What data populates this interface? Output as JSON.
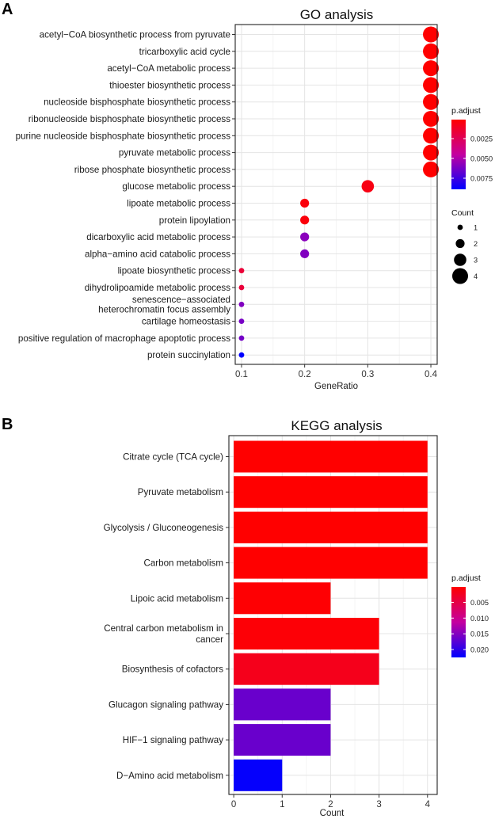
{
  "panels": {
    "a_letter": "A",
    "b_letter": "B"
  },
  "chart_data": [
    {
      "type": "scatter",
      "title": "GO analysis",
      "xlabel": "GeneRatio",
      "ylabel": "",
      "xlim": [
        0.09,
        0.41
      ],
      "xticks": [
        0.1,
        0.2,
        0.3,
        0.4
      ],
      "xtick_labels": [
        "0.1",
        "0.2",
        "0.3",
        "0.4"
      ],
      "grid": true,
      "categories": [
        "acetyl−CoA biosynthetic process from pyruvate",
        "tricarboxylic acid cycle",
        "acetyl−CoA metabolic process",
        "thioester biosynthetic process",
        "nucleoside bisphosphate biosynthetic process",
        "ribonucleoside bisphosphate biosynthetic process",
        "purine nucleoside bisphosphate biosynthetic process",
        "pyruvate metabolic process",
        "ribose phosphate biosynthetic process",
        "glucose metabolic process",
        "lipoate metabolic process",
        "protein lipoylation",
        "dicarboxylic acid metabolic process",
        "alpha−amino acid catabolic process",
        "lipoate biosynthetic process",
        "dihydrolipoamide metabolic process",
        "senescence−associated heterochromatin focus assembly",
        "cartilage homeostasis",
        "positive regulation of macrophage apoptotic process",
        "protein succinylation"
      ],
      "category_label_lines": [
        [
          "acetyl−CoA biosynthetic process from pyruvate"
        ],
        [
          "tricarboxylic acid cycle"
        ],
        [
          "acetyl−CoA metabolic process"
        ],
        [
          "thioester biosynthetic process"
        ],
        [
          "nucleoside bisphosphate biosynthetic process"
        ],
        [
          "ribonucleoside bisphosphate biosynthetic process"
        ],
        [
          "purine nucleoside bisphosphate biosynthetic process"
        ],
        [
          "pyruvate metabolic process"
        ],
        [
          "ribose phosphate biosynthetic process"
        ],
        [
          "glucose metabolic process"
        ],
        [
          "lipoate metabolic process"
        ],
        [
          "protein lipoylation"
        ],
        [
          "dicarboxylic acid metabolic process"
        ],
        [
          "alpha−amino acid catabolic process"
        ],
        [
          "lipoate biosynthetic process"
        ],
        [
          "dihydrolipoamide metabolic process"
        ],
        [
          "senescence−associated",
          "heterochromatin focus assembly"
        ],
        [
          "cartilage homeostasis"
        ],
        [
          "positive regulation of macrophage apoptotic process"
        ],
        [
          "protein succinylation"
        ]
      ],
      "gene_ratio": [
        0.4,
        0.4,
        0.4,
        0.4,
        0.4,
        0.4,
        0.4,
        0.4,
        0.4,
        0.3,
        0.2,
        0.2,
        0.2,
        0.2,
        0.1,
        0.1,
        0.1,
        0.1,
        0.1,
        0.1
      ],
      "count": [
        4,
        4,
        4,
        4,
        4,
        4,
        4,
        4,
        4,
        3,
        2,
        2,
        2,
        2,
        1,
        1,
        1,
        1,
        1,
        1
      ],
      "p_adjust": [
        0.0001,
        0.0001,
        0.0001,
        0.0001,
        0.0001,
        0.0001,
        0.0001,
        0.0001,
        0.0001,
        0.0006,
        0.0004,
        0.0004,
        0.0058,
        0.006,
        0.0016,
        0.0017,
        0.006,
        0.0062,
        0.0063,
        0.0089
      ],
      "color_legend": {
        "title": "p.adjust",
        "ticks": [
          0.0025,
          0.005,
          0.0075
        ],
        "tick_labels": [
          "0.0025",
          "0.0050",
          "0.0075"
        ],
        "range": [
          0.0001,
          0.0089
        ],
        "low_color": "#ff0000",
        "high_color": "#0000ff"
      },
      "size_legend": {
        "title": "Count",
        "values": [
          1,
          2,
          3,
          4
        ],
        "labels": [
          "1",
          "2",
          "3",
          "4"
        ]
      }
    },
    {
      "type": "bar",
      "orientation": "horizontal",
      "title": "KEGG analysis",
      "xlabel": "Count",
      "ylabel": "",
      "xlim": [
        -0.1,
        4.2
      ],
      "xticks": [
        0,
        1,
        2,
        3,
        4
      ],
      "xtick_labels": [
        "0",
        "1",
        "2",
        "3",
        "4"
      ],
      "grid": true,
      "categories": [
        "Citrate cycle (TCA cycle)",
        "Pyruvate metabolism",
        "Glycolysis / Gluconeogenesis",
        "Carbon metabolism",
        "Lipoic acid metabolism",
        "Central carbon metabolism in cancer",
        "Biosynthesis of cofactors",
        "Glucagon signaling pathway",
        "HIF−1 signaling pathway",
        "D−Amino acid metabolism"
      ],
      "category_label_lines": [
        [
          "Citrate cycle (TCA cycle)"
        ],
        [
          "Pyruvate metabolism"
        ],
        [
          "Glycolysis / Gluconeogenesis"
        ],
        [
          "Carbon metabolism"
        ],
        [
          "Lipoic acid metabolism"
        ],
        [
          "Central carbon metabolism in",
          "cancer"
        ],
        [
          "Biosynthesis of cofactors"
        ],
        [
          "Glucagon signaling pathway"
        ],
        [
          "HIF−1 signaling pathway"
        ],
        [
          "D−Amino acid metabolism"
        ]
      ],
      "values": [
        4,
        4,
        4,
        4,
        2,
        3,
        3,
        2,
        2,
        1
      ],
      "p_adjust": [
        0.0001,
        0.0001,
        0.0001,
        0.0001,
        0.0003,
        0.0005,
        0.002,
        0.0165,
        0.0165,
        0.0222
      ],
      "color_legend": {
        "title": "p.adjust",
        "ticks": [
          0.005,
          0.01,
          0.015,
          0.02
        ],
        "tick_labels": [
          "0.005",
          "0.010",
          "0.015",
          "0.020"
        ],
        "range": [
          0.0001,
          0.0225
        ],
        "low_color": "#ff0000",
        "high_color": "#0000ff"
      }
    }
  ]
}
